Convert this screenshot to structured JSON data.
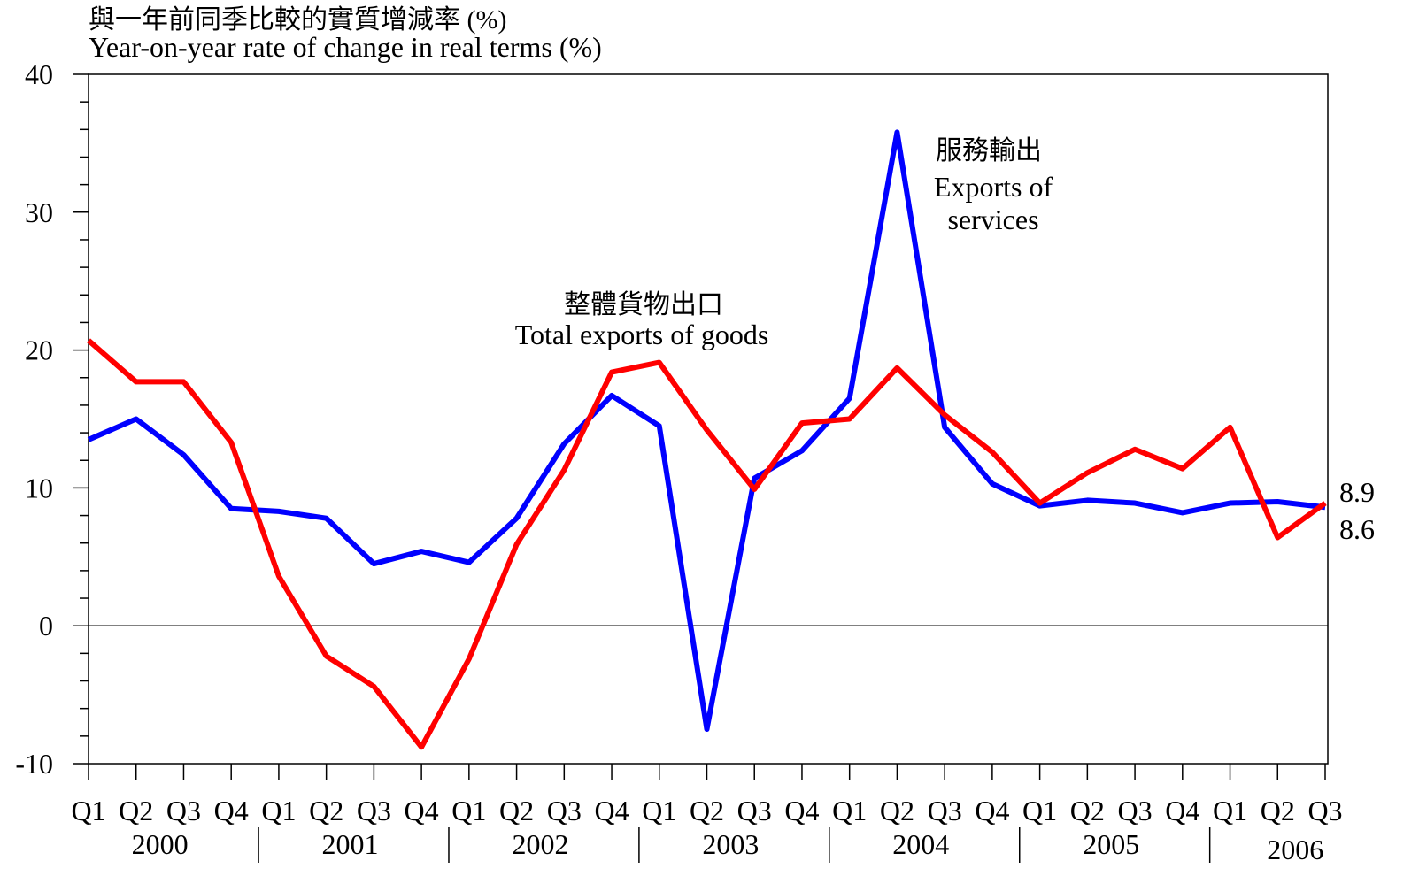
{
  "chart_data": {
    "type": "line",
    "title": "與一年前同季比較的實質增減率 (%)",
    "subtitle": "Year-on-year rate of change in real terms (%)",
    "categories": [
      "Q1",
      "Q2",
      "Q3",
      "Q4",
      "Q1",
      "Q2",
      "Q3",
      "Q4",
      "Q1",
      "Q2",
      "Q3",
      "Q4",
      "Q1",
      "Q2",
      "Q3",
      "Q4",
      "Q1",
      "Q2",
      "Q3",
      "Q4",
      "Q1",
      "Q2",
      "Q3",
      "Q4",
      "Q1",
      "Q2",
      "Q3"
    ],
    "years": [
      "2000",
      "2001",
      "2002",
      "2003",
      "2004",
      "2005",
      "2006"
    ],
    "series": [
      {
        "name": "Exports of services",
        "name_zh": "服務輸出",
        "color": "#0000ff",
        "values": [
          13.5,
          15.0,
          12.4,
          8.5,
          8.3,
          7.8,
          4.5,
          5.4,
          4.6,
          7.8,
          13.2,
          16.7,
          14.5,
          -7.5,
          10.7,
          12.7,
          16.5,
          35.8,
          14.4,
          10.3,
          8.7,
          9.1,
          8.9,
          8.2,
          8.9,
          9.0,
          8.6
        ]
      },
      {
        "name": "Total exports of goods",
        "name_zh": "整體貨物出口",
        "color": "#ff0000",
        "values": [
          20.7,
          17.7,
          17.7,
          13.3,
          3.6,
          -2.2,
          -4.4,
          -8.8,
          -2.4,
          5.9,
          11.3,
          18.4,
          19.1,
          14.2,
          9.9,
          14.7,
          15.0,
          18.7,
          15.3,
          12.6,
          8.9,
          11.1,
          12.8,
          11.4,
          14.4,
          6.4,
          8.9
        ]
      }
    ],
    "ylim": [
      -10,
      40
    ],
    "yticks": [
      -10,
      0,
      10,
      20,
      30,
      40
    ]
  }
}
